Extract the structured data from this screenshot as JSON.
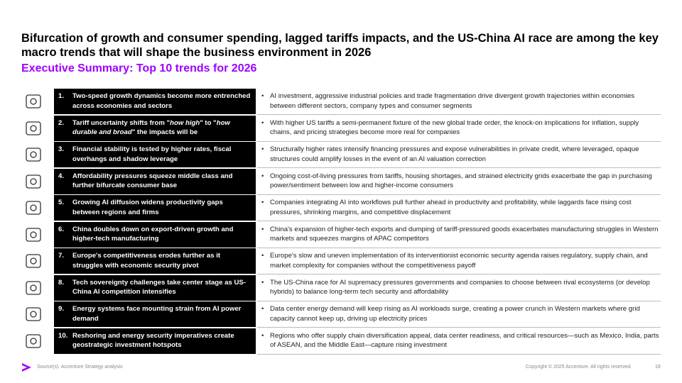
{
  "header": {
    "title": "Bifurcation of growth and consumer spending, lagged tariffs impacts, and the US-China AI race are among the key macro trends that will shape the business environment in 2026",
    "subtitle": "Executive Summary: Top 10 trends for 2026"
  },
  "table": {
    "rows": [
      {
        "number": "1.",
        "trend": [
          {
            "text": "Two-speed growth dynamics become more entrenched across economies and sectors"
          }
        ],
        "description": "AI investment, aggressive industrial policies and trade fragmentation drive divergent growth trajectories within economies between different sectors, company types and consumer segments"
      },
      {
        "number": "2.",
        "trend": [
          {
            "text": "Tariff uncertainty shifts from \""
          },
          {
            "text": "how high",
            "italic": true
          },
          {
            "text": "\" to \""
          },
          {
            "text": "how durable and broad",
            "italic": true
          },
          {
            "text": "\" the impacts will be"
          }
        ],
        "description": "With higher US tariffs a semi-permanent fixture of the new global trade order, the knock-on implications for inflation, supply chains, and pricing strategies become more real for companies"
      },
      {
        "number": "3.",
        "trend": [
          {
            "text": "Financial stability is tested by higher rates, fiscal overhangs and shadow leverage"
          }
        ],
        "description": "Structurally higher rates intensify financing pressures and expose vulnerabilities in private credit, where leveraged, opaque structures could amplify losses in the event of an AI valuation correction"
      },
      {
        "number": "4.",
        "trend": [
          {
            "text": "Affordability pressures squeeze middle class and further bifurcate consumer base"
          }
        ],
        "description": "Ongoing cost-of-living pressures from tariffs, housing shortages, and strained electricity grids exacerbate the gap in purchasing power/sentiment between low and higher-income consumers"
      },
      {
        "number": "5.",
        "trend": [
          {
            "text": "Growing AI diffusion widens productivity gaps between regions and firms"
          }
        ],
        "description": "Companies integrating AI into workflows pull further ahead in productivity and profitability, while laggards face rising cost pressures, shrinking margins, and competitive displacement"
      },
      {
        "number": "6.",
        "trend": [
          {
            "text": "China doubles down on export-driven growth and higher-tech manufacturing"
          }
        ],
        "description": "China's expansion of higher-tech exports and dumping of tariff-pressured goods exacerbates manufacturing struggles in Western markets and squeezes margins of APAC competitors"
      },
      {
        "number": "7.",
        "trend": [
          {
            "text": "Europe's competitiveness erodes further as it struggles with economic security pivot"
          }
        ],
        "description": "Europe's slow and uneven implementation of its interventionist economic security agenda raises regulatory, supply chain, and market complexity for companies without the competitiveness payoff"
      },
      {
        "number": "8.",
        "trend": [
          {
            "text": "Tech sovereignty challenges take center stage as US-China AI competition intensifies"
          }
        ],
        "description": "The US-China race for AI supremacy pressures governments and companies to choose between rival ecosystems (or develop hybrids) to balance long-term tech security and affordability"
      },
      {
        "number": "9.",
        "trend": [
          {
            "text": "Energy systems face mounting strain from AI power demand"
          }
        ],
        "description": "Data center energy demand will keep rising as AI workloads surge, creating a power crunch in Western markets where grid capacity cannot keep up, driving up electricity prices"
      },
      {
        "number": "10.",
        "trend": [
          {
            "text": "Reshoring and energy security imperatives create geostrategic investment hotspots"
          }
        ],
        "description": "Regions who offer supply chain diversification appeal, data center readiness, and critical resources—such as Mexico, India, parts of ASEAN, and the Middle East—capture rising investment"
      }
    ]
  },
  "footer": {
    "source": "Source(s): Accenture Strategy analysis",
    "copyright": "Copyright © 2025 Accenture. All rights reserved.",
    "page": "18"
  }
}
